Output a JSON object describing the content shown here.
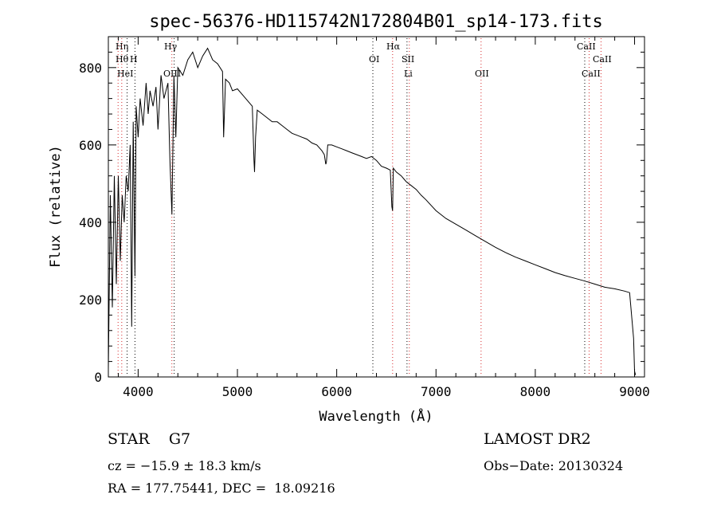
{
  "chart_data": {
    "type": "line",
    "title": "spec-56376-HD115742N172804B01_sp14-173.fits",
    "xlabel": "Wavelength (Å)",
    "ylabel": "Flux (relative)",
    "xlim": [
      3700,
      9100
    ],
    "ylim": [
      0,
      880
    ],
    "x_ticks": [
      4000,
      5000,
      6000,
      7000,
      8000,
      9000
    ],
    "y_ticks": [
      0,
      200,
      400,
      600,
      800
    ],
    "grid": false,
    "series": [
      {
        "color": "#000000",
        "x": [
          3700,
          3720,
          3740,
          3760,
          3780,
          3800,
          3820,
          3840,
          3860,
          3880,
          3900,
          3920,
          3935,
          3950,
          3968,
          3980,
          4000,
          4020,
          4050,
          4080,
          4101,
          4120,
          4150,
          4180,
          4200,
          4230,
          4260,
          4300,
          4320,
          4340,
          4360,
          4380,
          4400,
          4450,
          4500,
          4550,
          4600,
          4650,
          4700,
          4750,
          4800,
          4850,
          4861,
          4880,
          4920,
          4950,
          5000,
          5050,
          5100,
          5150,
          5167,
          5172,
          5183,
          5200,
          5250,
          5300,
          5350,
          5400,
          5450,
          5500,
          5550,
          5600,
          5650,
          5700,
          5750,
          5800,
          5850,
          5875,
          5890,
          5896,
          5910,
          5950,
          6000,
          6050,
          6100,
          6150,
          6200,
          6250,
          6300,
          6350,
          6400,
          6450,
          6500,
          6540,
          6556,
          6563,
          6570,
          6600,
          6650,
          6700,
          6750,
          6800,
          6850,
          6900,
          6950,
          7000,
          7100,
          7200,
          7300,
          7400,
          7500,
          7600,
          7700,
          7800,
          7900,
          8000,
          8100,
          8200,
          8300,
          8400,
          8500,
          8600,
          8700,
          8800,
          8900,
          8950,
          8990,
          9000,
          9010
        ],
        "y": [
          20,
          470,
          180,
          520,
          240,
          520,
          300,
          470,
          400,
          520,
          480,
          600,
          130,
          660,
          260,
          700,
          620,
          720,
          650,
          760,
          680,
          740,
          700,
          750,
          640,
          780,
          720,
          760,
          560,
          420,
          780,
          620,
          800,
          780,
          820,
          840,
          800,
          830,
          850,
          820,
          810,
          790,
          620,
          770,
          760,
          740,
          745,
          730,
          715,
          700,
          560,
          530,
          620,
          690,
          680,
          670,
          660,
          660,
          650,
          640,
          630,
          625,
          620,
          615,
          605,
          600,
          585,
          575,
          550,
          555,
          600,
          600,
          595,
          590,
          585,
          580,
          575,
          570,
          565,
          570,
          560,
          545,
          540,
          535,
          440,
          430,
          540,
          530,
          520,
          505,
          495,
          485,
          470,
          458,
          444,
          430,
          410,
          395,
          380,
          365,
          350,
          335,
          322,
          310,
          300,
          290,
          280,
          270,
          262,
          255,
          248,
          240,
          232,
          228,
          222,
          218,
          100,
          15,
          5
        ]
      }
    ],
    "line_annotations": [
      {
        "wavelength": 3798,
        "label": "Hη",
        "color": "#d62728"
      },
      {
        "wavelength": 3835,
        "label": "Hθ",
        "color": "#d62728"
      },
      {
        "wavelength": 3889,
        "label": "HeI",
        "color": "#000000"
      },
      {
        "wavelength": 3968,
        "label": "H",
        "color": "#000000"
      },
      {
        "wavelength": 4340,
        "label": "Hγ",
        "color": "#d62728"
      },
      {
        "wavelength": 4363,
        "label": "OIII",
        "color": "#000000"
      },
      {
        "wavelength": 6364,
        "label": "OI",
        "color": "#000000"
      },
      {
        "wavelength": 6563,
        "label": "Hα",
        "color": "#d62728"
      },
      {
        "wavelength": 6708,
        "label": "Li",
        "color": "#000000"
      },
      {
        "wavelength": 6731,
        "label": "SII",
        "color": "#d62728"
      },
      {
        "wavelength": 7454,
        "label": "OII",
        "color": "#d62728"
      },
      {
        "wavelength": 8498,
        "label": "CaII",
        "color": "#000000"
      },
      {
        "wavelength": 8542,
        "label": "CaII",
        "color": "#d62728"
      },
      {
        "wavelength": 8662,
        "label": "CaII",
        "color": "#d62728"
      }
    ]
  },
  "info": {
    "star_class": "STAR    G7",
    "survey": "LAMOST DR2",
    "cz": "cz = −15.9 ± 18.3 km/s",
    "obs_date": "Obs−Date: 20130324",
    "radec": "RA = 177.75441, DEC =  18.09216"
  }
}
